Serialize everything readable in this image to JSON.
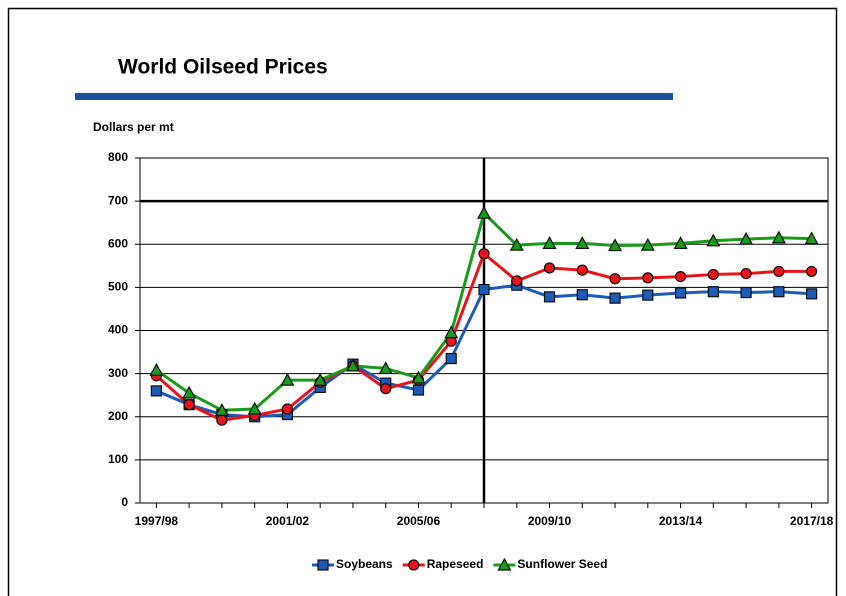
{
  "chart_data": {
    "type": "line",
    "title": "World Oilseed Prices",
    "y_label": "Dollars per mt",
    "categories": [
      "1997/98",
      null,
      null,
      null,
      "2001/02",
      null,
      null,
      null,
      "2005/06",
      null,
      null,
      null,
      "2009/10",
      null,
      null,
      null,
      "2013/14",
      null,
      null,
      null,
      "2017/18"
    ],
    "series": [
      {
        "name": "Soybeans",
        "color": "#1e5bb8",
        "marker": "square",
        "values": [
          260,
          228,
          205,
          200,
          205,
          268,
          322,
          278,
          262,
          335,
          495,
          505,
          478,
          483,
          475,
          482,
          487,
          490,
          488,
          490,
          485
        ]
      },
      {
        "name": "Rapeseed",
        "color": "#e8141c",
        "marker": "circle",
        "values": [
          295,
          228,
          192,
          203,
          218,
          280,
          318,
          265,
          285,
          375,
          578,
          515,
          545,
          540,
          520,
          522,
          525,
          530,
          532,
          537,
          537
        ]
      },
      {
        "name": "Sunflower Seed",
        "color": "#1a9a1a",
        "marker": "triangle",
        "values": [
          308,
          255,
          215,
          218,
          285,
          285,
          318,
          312,
          290,
          395,
          672,
          598,
          602,
          602,
          597,
          598,
          602,
          608,
          612,
          615,
          613
        ]
      }
    ],
    "ylim": [
      0,
      800
    ],
    "yticks": [
      0,
      100,
      200,
      300,
      400,
      500,
      600,
      700,
      800
    ],
    "grid": true,
    "legend": "bottom"
  }
}
